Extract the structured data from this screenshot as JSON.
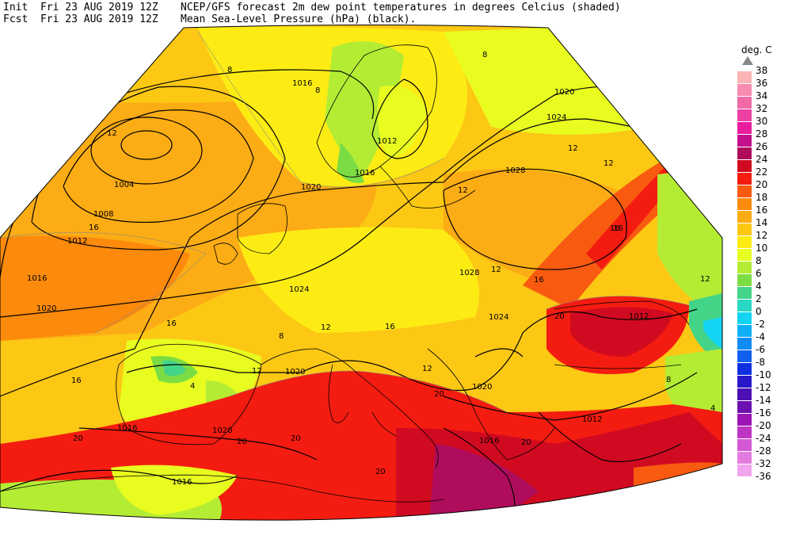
{
  "header": {
    "init_label": "Init",
    "init_time": "Fri 23 AUG 2019 12Z",
    "fcst_label": "Fcst",
    "fcst_time": "Fri 23 AUG 2019 12Z",
    "title": "NCEP/GFS forecast 2m dew point temperatures in degrees Celcius (shaded)",
    "subtitle": "Mean Sea-Level Pressure (hPa) (black)."
  },
  "legend": {
    "unit": "deg. C",
    "entries": [
      {
        "value": "38",
        "color": "#888888"
      },
      {
        "value": "36",
        "color": "#fcb4b4"
      },
      {
        "value": "34",
        "color": "#f88cb0"
      },
      {
        "value": "32",
        "color": "#f06aa8"
      },
      {
        "value": "30",
        "color": "#ec40a4"
      },
      {
        "value": "28",
        "color": "#e81c9c"
      },
      {
        "value": "26",
        "color": "#c4108c"
      },
      {
        "value": "24",
        "color": "#b00c5c"
      },
      {
        "value": "22",
        "color": "#d00a20"
      },
      {
        "value": "20",
        "color": "#f41c10"
      },
      {
        "value": "18",
        "color": "#f85a10"
      },
      {
        "value": "16",
        "color": "#fc8a0c"
      },
      {
        "value": "14",
        "color": "#fcac14"
      },
      {
        "value": "12",
        "color": "#fcc814"
      },
      {
        "value": "10",
        "color": "#fcec14"
      },
      {
        "value": "8",
        "color": "#e8fc20"
      },
      {
        "value": "6",
        "color": "#b4ec34"
      },
      {
        "value": "4",
        "color": "#7cdc44"
      },
      {
        "value": "2",
        "color": "#44d488"
      },
      {
        "value": "0",
        "color": "#28d8c4"
      },
      {
        "value": "-2",
        "color": "#14d4f4"
      },
      {
        "value": "-4",
        "color": "#10b0f8"
      },
      {
        "value": "-6",
        "color": "#108cf8"
      },
      {
        "value": "-8",
        "color": "#1060f0"
      },
      {
        "value": "-10",
        "color": "#1030e0"
      },
      {
        "value": "-12",
        "color": "#2818c8"
      },
      {
        "value": "-14",
        "color": "#4c10b4"
      },
      {
        "value": "-16",
        "color": "#6c10b0"
      },
      {
        "value": "-20",
        "color": "#9c14b4"
      },
      {
        "value": "-24",
        "color": "#c034c4"
      },
      {
        "value": "-28",
        "color": "#d458d4"
      },
      {
        "value": "-32",
        "color": "#e47ce0"
      },
      {
        "value": "-36",
        "color": "#f0a4ec"
      }
    ]
  },
  "isobar_labels": [
    "1016",
    "1020",
    "1024",
    "1012",
    "1016",
    "1028",
    "1004",
    "1008",
    "1012",
    "1016",
    "1020",
    "1020",
    "1024",
    "1028",
    "1024",
    "1012",
    "1020",
    "1020",
    "1012",
    "1016",
    "1020",
    "1016",
    "1016"
  ],
  "dewpoint_labels": [
    "8",
    "8",
    "8",
    "12",
    "12",
    "12",
    "16",
    "16",
    "12",
    "16",
    "12",
    "16",
    "12",
    "20",
    "16",
    "20",
    "20",
    "20",
    "8",
    "4",
    "12",
    "12",
    "20",
    "20",
    "20",
    "16",
    "8",
    "4",
    "12",
    "16"
  ]
}
